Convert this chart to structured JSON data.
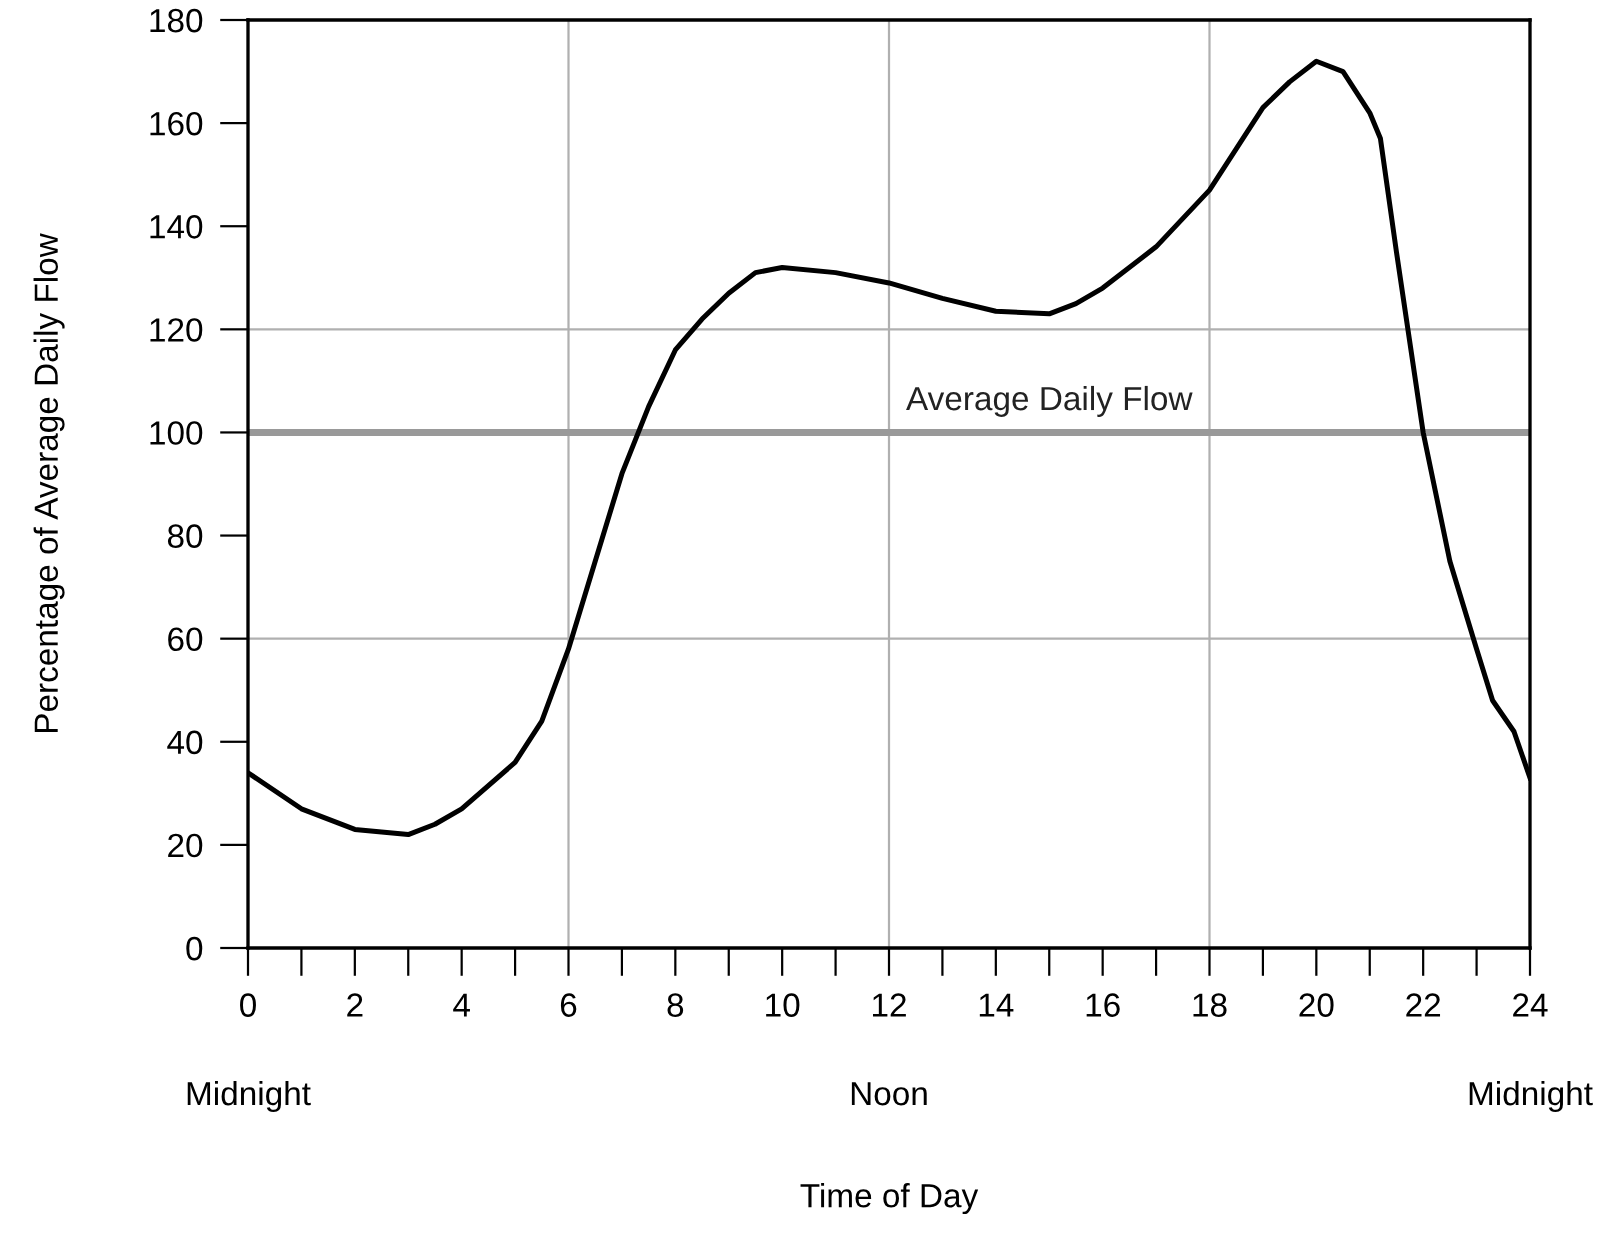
{
  "chart_data": {
    "type": "line",
    "ylabel": "Percentage of Average Daily Flow",
    "x": [
      0,
      1,
      2,
      3,
      3.5,
      4,
      5,
      5.5,
      6,
      6.5,
      7,
      7.5,
      8,
      8.5,
      9,
      9.5,
      10,
      11,
      12,
      13,
      14,
      15,
      15.5,
      16,
      17,
      18,
      18.5,
      19,
      19.5,
      20,
      20.5,
      21,
      21.2,
      21.5,
      22,
      22.5,
      23,
      23.3,
      23.7,
      24
    ],
    "series": [
      {
        "color": "#000000",
        "values": [
          34,
          27,
          23,
          22,
          24,
          27,
          36,
          44,
          58,
          75,
          92,
          105,
          116,
          122,
          127,
          131,
          132,
          131,
          129,
          126,
          123.5,
          123,
          125,
          128,
          136,
          147,
          155,
          163,
          168,
          172,
          170,
          162,
          157,
          135,
          100,
          75,
          58,
          48,
          42,
          33
        ]
      }
    ],
    "xlim": [
      0,
      24
    ],
    "xticks": [
      0,
      {
        "value": 1,
        "label": null
      },
      2,
      {
        "value": 3,
        "label": null
      },
      4,
      {
        "value": 5,
        "label": null
      },
      6,
      {
        "value": 7,
        "label": null
      },
      8,
      {
        "value": 9,
        "label": null
      },
      10,
      {
        "value": 11,
        "label": null
      },
      12,
      {
        "value": 13,
        "label": null
      },
      14,
      {
        "value": 15,
        "label": null
      },
      16,
      {
        "value": 17,
        "label": null
      },
      18,
      {
        "value": 19,
        "label": null
      },
      20,
      {
        "value": 21,
        "label": null
      },
      22,
      {
        "value": 23,
        "label": null
      },
      24
    ],
    "annotations": [
      "Midnight",
      "Noon",
      "Midnight",
      "Time of Day"
    ],
    "ylim": [
      0,
      180
    ],
    "yticks": [
      0,
      20,
      40,
      60,
      80,
      100,
      120,
      140,
      160,
      180
    ],
    "ref_lines": [
      {
        "axis": "y",
        "value": 100,
        "label": "Average Daily Flow",
        "color": "#999999"
      }
    ],
    "grid": true,
    "legend": false,
    "marker": "none",
    "line_style": "solid"
  }
}
